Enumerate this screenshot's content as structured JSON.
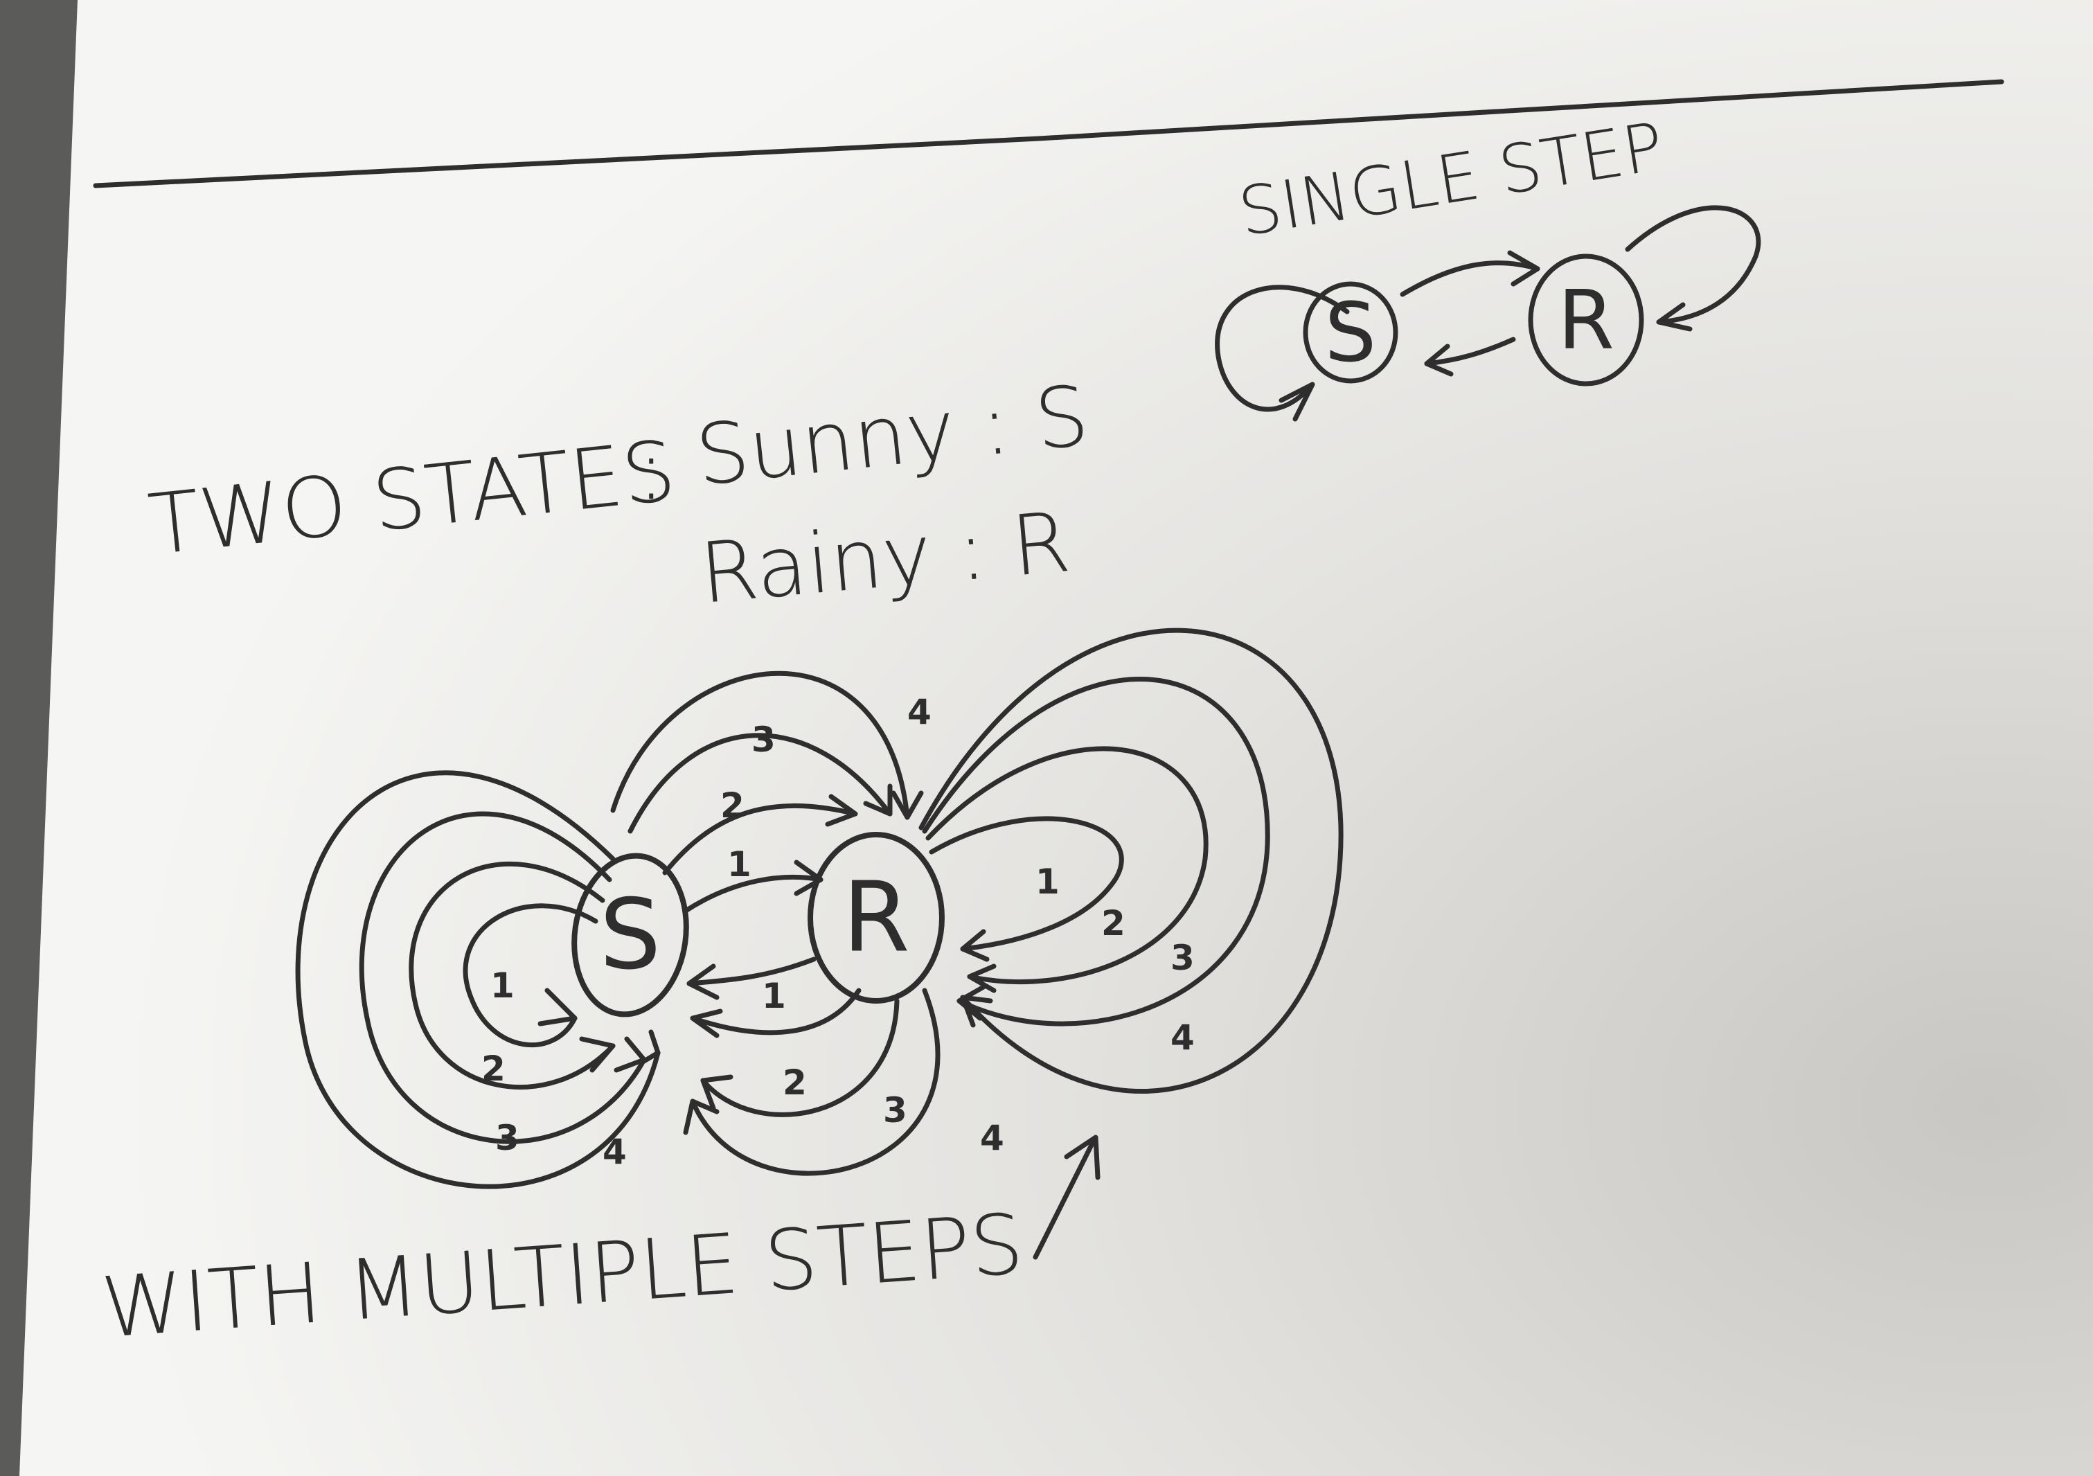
{
  "headings": {
    "single_step": "SINGLE STEP",
    "two_states": "TWO STATES",
    "states_colon": ":",
    "sunny_line": "Sunny : S",
    "rainy_line": "Rainy : R",
    "with_multiple_steps": "WITH MULTIPLE STEPS"
  },
  "single_step_diagram": {
    "nodes": [
      {
        "id": "S",
        "label": "S"
      },
      {
        "id": "R",
        "label": "R"
      }
    ]
  },
  "multi_step_diagram": {
    "nodes": [
      {
        "id": "S",
        "label": "S"
      },
      {
        "id": "R",
        "label": "R"
      }
    ],
    "step_labels": {
      "s_to_r": [
        "1",
        "2",
        "3",
        "4"
      ],
      "r_to_s": [
        "1",
        "2",
        "3",
        "4"
      ],
      "s_self": [
        "1",
        "2",
        "3",
        "4"
      ],
      "r_self": [
        "1",
        "2",
        "3",
        "4"
      ]
    }
  },
  "colors": {
    "ink": "#2e2e2e",
    "paper": "#f1f1ef",
    "table": "#5b5b59"
  }
}
